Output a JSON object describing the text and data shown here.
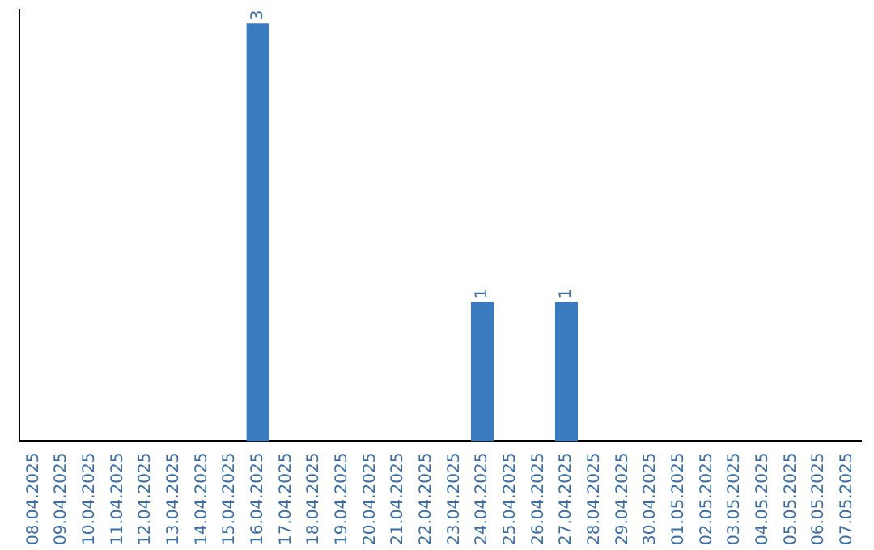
{
  "chart_data": {
    "type": "bar",
    "categories": [
      "08.04.2025",
      "09.04.2025",
      "10.04.2025",
      "11.04.2025",
      "12.04.2025",
      "13.04.2025",
      "14.04.2025",
      "15.04.2025",
      "16.04.2025",
      "17.04.2025",
      "18.04.2025",
      "19.04.2025",
      "20.04.2025",
      "21.04.2025",
      "22.04.2025",
      "23.04.2025",
      "24.04.2025",
      "25.04.2025",
      "26.04.2025",
      "27.04.2025",
      "28.04.2025",
      "29.04.2025",
      "30.04.2025",
      "01.05.2025",
      "02.05.2025",
      "03.05.2025",
      "04.05.2025",
      "05.05.2025",
      "06.05.2025",
      "07.05.2025"
    ],
    "values": [
      0,
      0,
      0,
      0,
      0,
      0,
      0,
      0,
      3,
      0,
      0,
      0,
      0,
      0,
      0,
      0,
      1,
      0,
      0,
      1,
      0,
      0,
      0,
      0,
      0,
      0,
      0,
      0,
      0,
      0
    ],
    "value_labels": [
      null,
      null,
      null,
      null,
      null,
      null,
      null,
      null,
      "3",
      null,
      null,
      null,
      null,
      null,
      null,
      null,
      "1",
      null,
      null,
      "1",
      null,
      null,
      null,
      null,
      null,
      null,
      null,
      null,
      null,
      null
    ],
    "color": "#3a7bbf",
    "ylim": [
      0,
      3.1
    ],
    "tick_labels": "x",
    "grid": false,
    "legend": false
  }
}
